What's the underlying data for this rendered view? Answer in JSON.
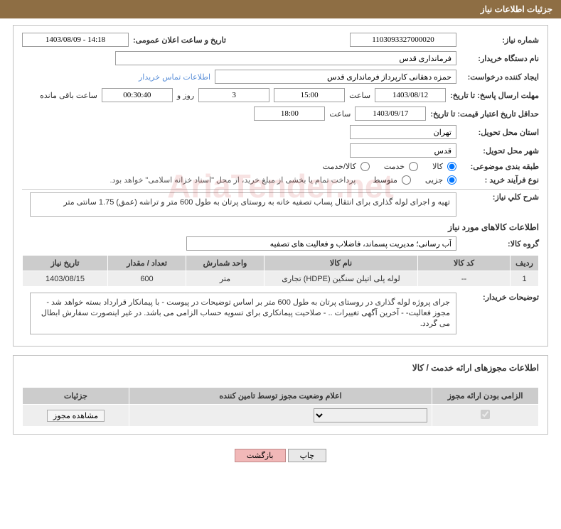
{
  "header": {
    "title": "جزئیات اطلاعات نیاز"
  },
  "fields": {
    "need_no_lbl": "شماره نیاز:",
    "need_no": "1103093327000020",
    "announce_lbl": "تاریخ و ساعت اعلان عمومی:",
    "announce_val": "1403/08/09 - 14:18",
    "buyer_org_lbl": "نام دستگاه خریدار:",
    "buyer_org": "فرمانداری قدس",
    "requester_lbl": "ایجاد کننده درخواست:",
    "requester": "حمزه دهقانی کارپرداز فرمانداری قدس",
    "buyer_contact_link": "اطلاعات تماس خریدار",
    "deadline_lbl": "مهلت ارسال پاسخ: تا تاریخ:",
    "deadline_date": "1403/08/12",
    "time_lbl": "ساعت",
    "deadline_time": "15:00",
    "days": "3",
    "days_and": "روز و",
    "countdown": "00:30:40",
    "remaining": "ساعت باقی مانده",
    "validity_lbl": "حداقل تاریخ اعتبار قیمت: تا تاریخ:",
    "validity_date": "1403/09/17",
    "validity_time": "18:00",
    "deliver_prov_lbl": "استان محل تحویل:",
    "deliver_prov": "تهران",
    "deliver_city_lbl": "شهر محل تحویل:",
    "deliver_city": "قدس",
    "category_lbl": "طبقه بندی موضوعی:",
    "cat_goods": "کالا",
    "cat_service": "خدمت",
    "cat_both": "کالا/خدمت",
    "process_lbl": "نوع فرآیند خرید :",
    "proc_partial": "جزیی",
    "proc_medium": "متوسط",
    "process_note": "پرداخت تمام یا بخشی از مبلغ خرید، از محل \"اسناد خزانه اسلامی\" خواهد بود.",
    "summary_lbl": "شرح کلي نياز:",
    "summary": "تهیه و اجرای لوله گذاری برای انتقال پساب تصفیه خانه به روستای پرتان به طول 600 متر و تراشه (عمق) 1.75 سانتی متر",
    "goods_info_title": "اطلاعات کالاهای مورد نياز",
    "goods_group_lbl": "گروه کالا:",
    "goods_group": "آب رسانی؛ مدیریت پسماند، فاضلاب و فعالیت های تصفیه",
    "buyer_notes_lbl": "توضيحات خريدار:",
    "buyer_notes": "جرای پروژه لوله گذاری در روستای پرتان به طول 600 متر بر اساس توضیحات در پیوست - با پیمانکار قرارداد بسته خواهد شد - مجوز فعالیت-  - آخرین آگهی تغییرات .. - صلاحیت پیمانکاری برای تسویه حساب الزامی می باشد. در غیر اینصورت سفارش ابطال می گردد."
  },
  "goods_table": {
    "headers": [
      "ردیف",
      "کد کالا",
      "نام کالا",
      "واحد شمارش",
      "تعداد / مقدار",
      "تاریخ نیاز"
    ],
    "widths": [
      "40px",
      "130px",
      "auto",
      "110px",
      "110px",
      "120px"
    ],
    "rows": [
      [
        "1",
        "--",
        "لوله پلی اتیلن سنگین (HDPE) تجاری",
        "متر",
        "600",
        "1403/08/15"
      ]
    ]
  },
  "permit_section": {
    "title": "اطلاعات مجوزهای ارائه خدمت / کالا",
    "headers": [
      "الزامی بودن ارائه مجوز",
      "اعلام وضعیت مجوز توسط تامین کننده",
      "جزئیات"
    ],
    "widths": [
      "150px",
      "auto",
      "150px"
    ],
    "view_btn": "مشاهده مجوز",
    "mandatory_checked": true
  },
  "footer": {
    "print": "چاپ",
    "return": "بازگشت"
  },
  "colors": {
    "header_bg": "#8e6e44",
    "panel_border": "#c0c0c0",
    "th_bg": "#cccccc",
    "td_bg": "#eeeeee",
    "link": "#5a8fd8"
  }
}
